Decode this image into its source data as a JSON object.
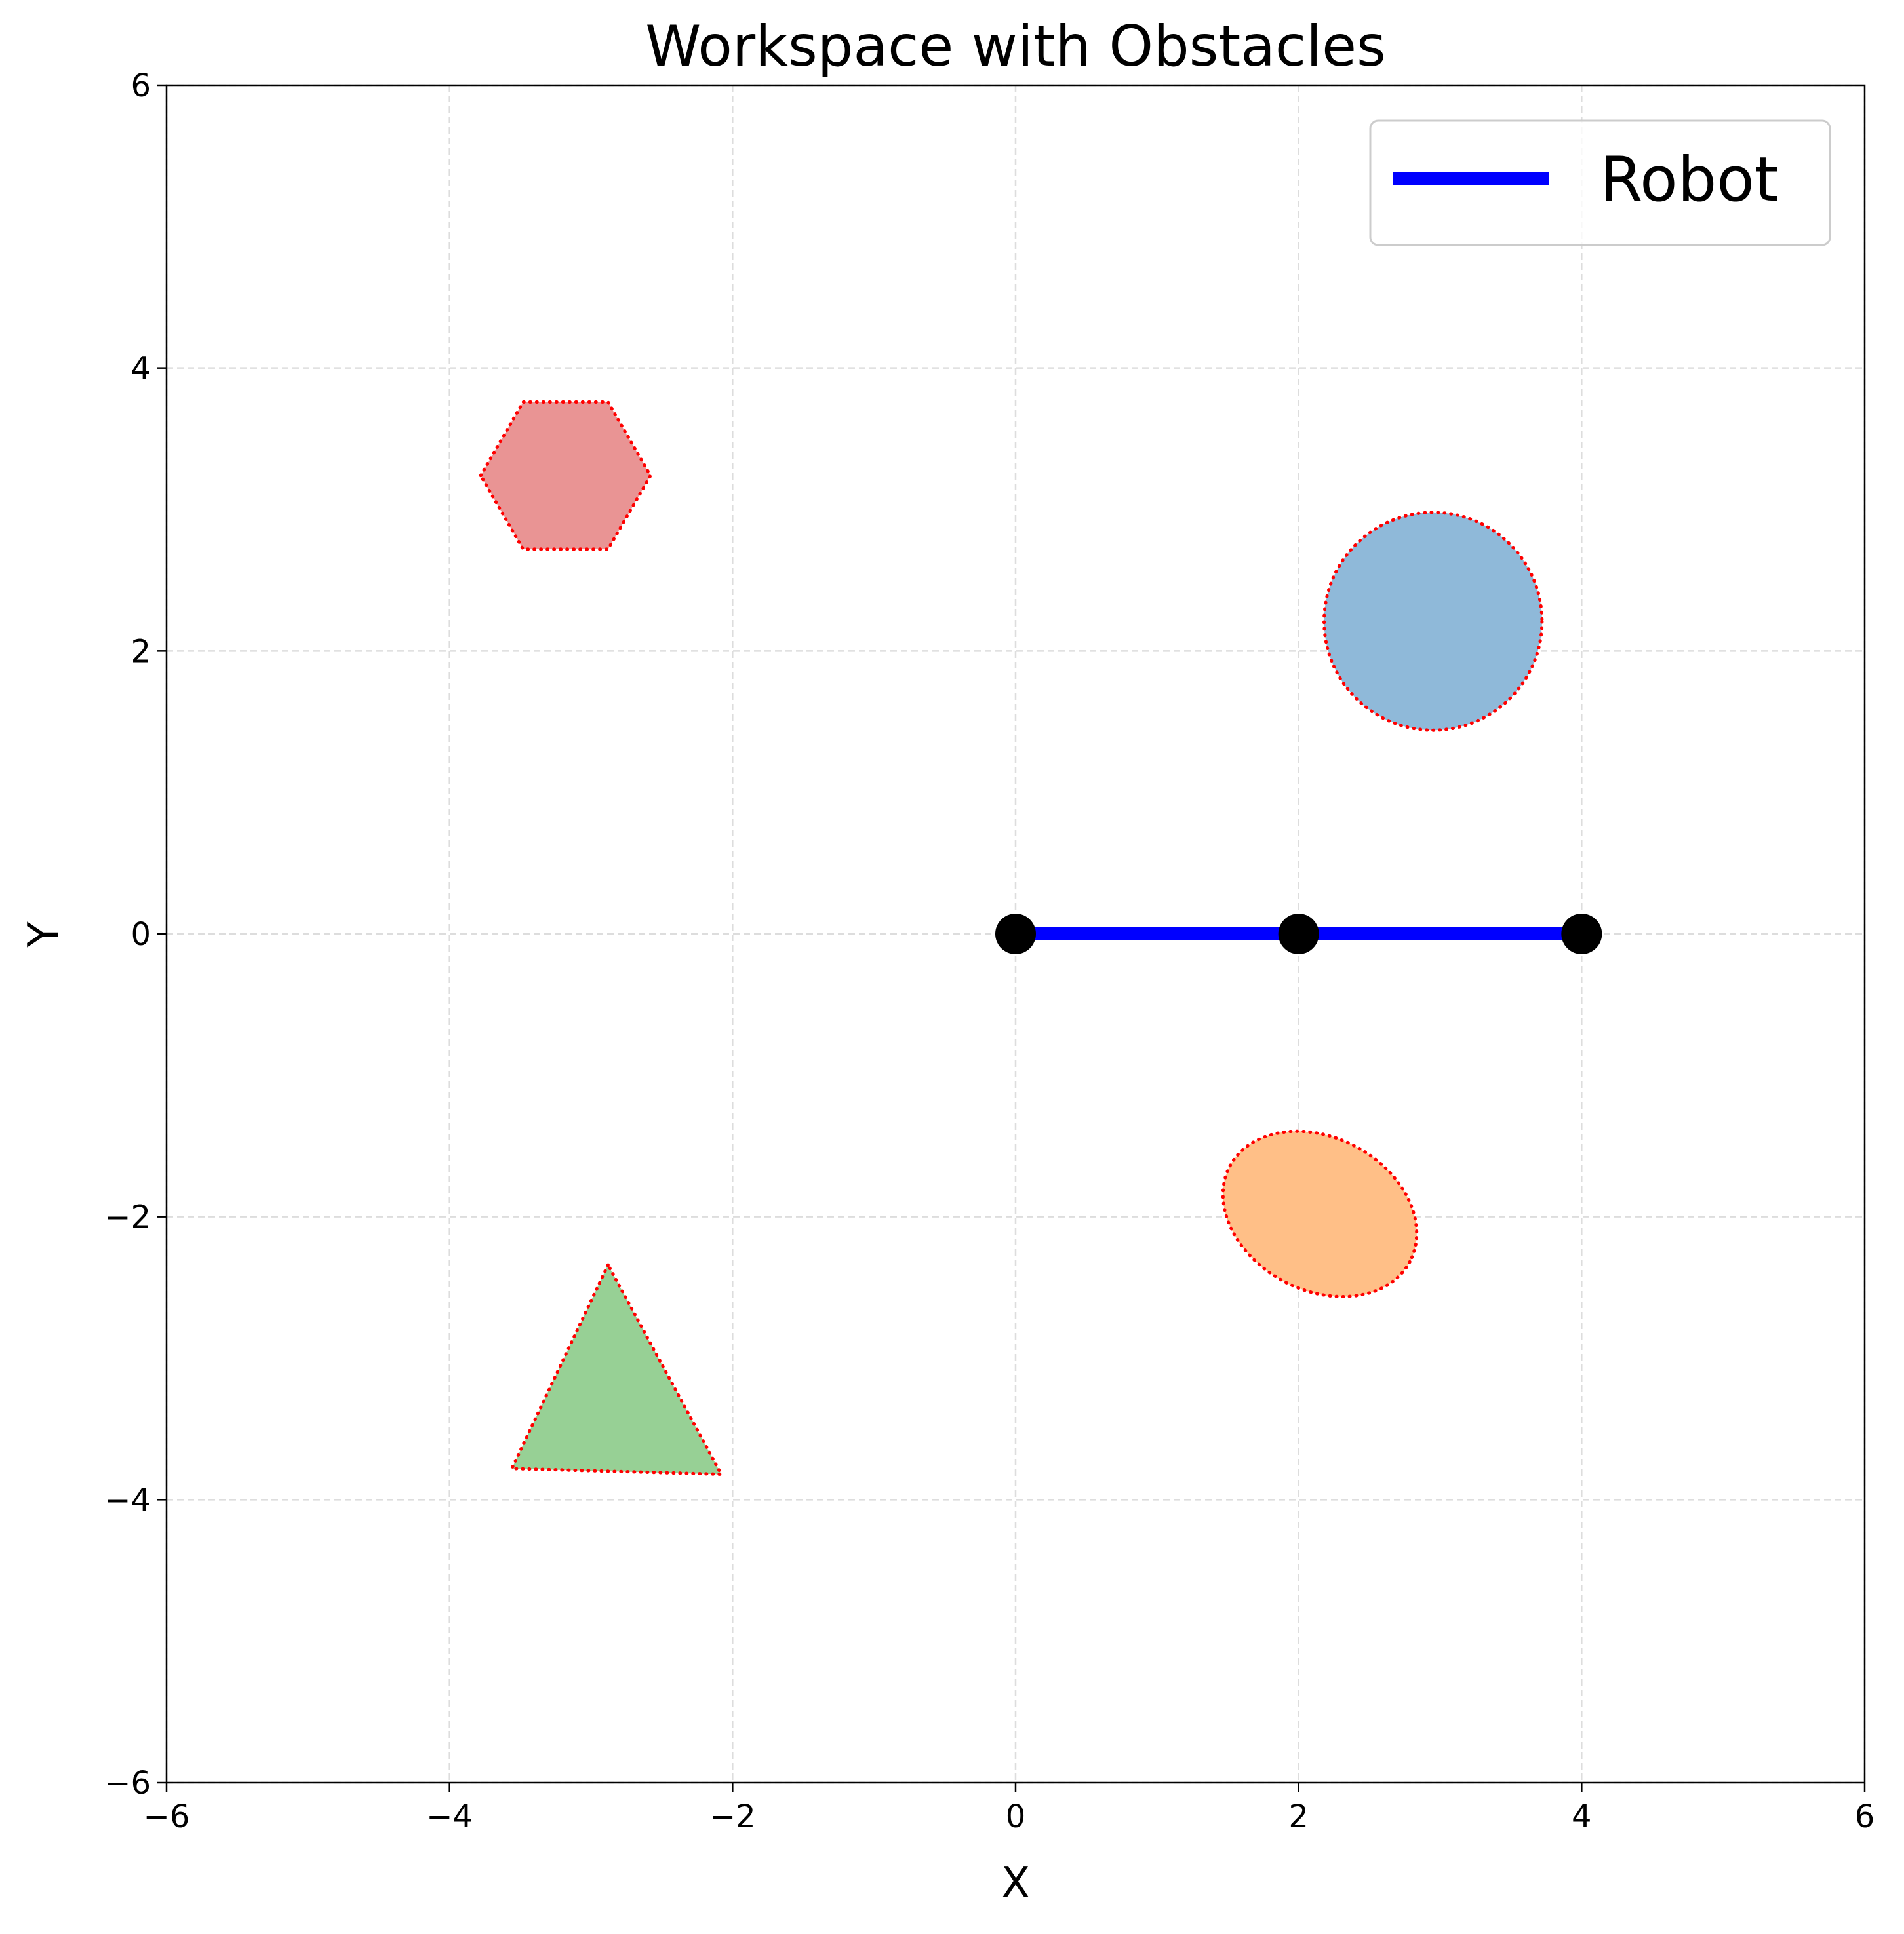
{
  "chart_data": {
    "type": "scatter",
    "title": "Workspace with Obstacles",
    "xlabel": "X",
    "ylabel": "Y",
    "xlim": [
      -6,
      6
    ],
    "ylim": [
      -6,
      6
    ],
    "xticks": [
      -6,
      -4,
      -2,
      0,
      2,
      4,
      6
    ],
    "yticks": [
      -6,
      -4,
      -2,
      0,
      2,
      4,
      6
    ],
    "xtick_labels": [
      "−6",
      "−4",
      "−2",
      "0",
      "2",
      "4",
      "6"
    ],
    "ytick_labels": [
      "−6",
      "−4",
      "−2",
      "0",
      "2",
      "4",
      "6"
    ],
    "grid": true,
    "legend": {
      "placement": "top-right",
      "entries": [
        {
          "label": "Robot",
          "color": "#0000ff"
        }
      ]
    },
    "robot": {
      "name": "Robot",
      "color": "#0000ff",
      "joint_color": "#000000",
      "joints": [
        [
          0,
          0
        ],
        [
          2,
          0
        ],
        [
          4,
          0
        ]
      ]
    },
    "obstacles": [
      {
        "shape": "hexagon",
        "fill": "#e99494",
        "edge": "#ff0000",
        "vertices": [
          [
            -3.78,
            3.24
          ],
          [
            -3.48,
            3.76
          ],
          [
            -2.88,
            3.76
          ],
          [
            -2.58,
            3.24
          ],
          [
            -2.88,
            2.72
          ],
          [
            -3.48,
            2.72
          ]
        ]
      },
      {
        "shape": "circle",
        "fill": "#8fb9d9",
        "edge": "#ff0000",
        "center": [
          2.95,
          2.21
        ],
        "radius": 0.77
      },
      {
        "shape": "ellipse",
        "fill": "#ffbf87",
        "edge": "#ff0000",
        "center": [
          2.15,
          -1.98
        ],
        "rx": 0.72,
        "ry": 0.54,
        "angle": -28
      },
      {
        "shape": "triangle",
        "fill": "#97d095",
        "edge": "#ff0000",
        "vertices": [
          [
            -2.88,
            -2.34
          ],
          [
            -3.56,
            -3.78
          ],
          [
            -2.08,
            -3.82
          ]
        ]
      }
    ]
  }
}
